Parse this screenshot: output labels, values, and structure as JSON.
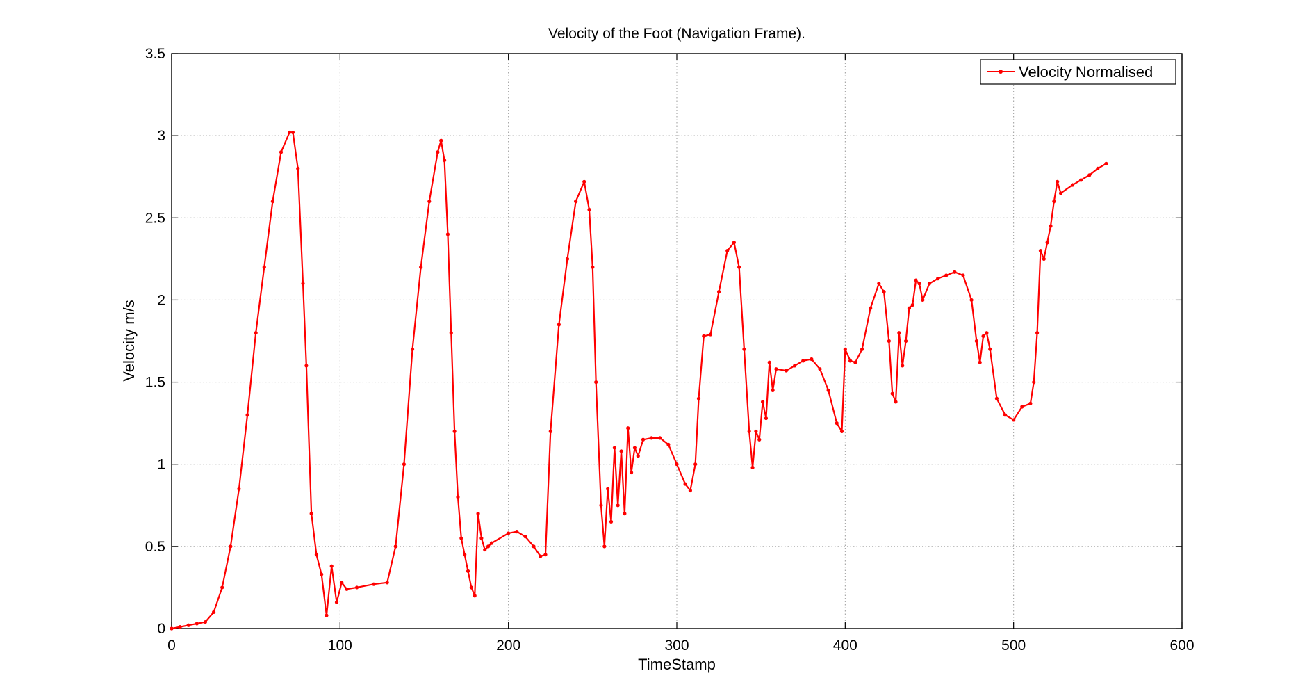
{
  "chart_data": {
    "type": "line",
    "title": "Velocity of the Foot (Navigation Frame).",
    "xlabel": "TimeStamp",
    "ylabel": "Velocity m/s",
    "xlim": [
      0,
      600
    ],
    "ylim": [
      0,
      3.5
    ],
    "xticks": [
      0,
      100,
      200,
      300,
      400,
      500,
      600
    ],
    "yticks": [
      0,
      0.5,
      1,
      1.5,
      2,
      2.5,
      3,
      3.5
    ],
    "xtick_labels": [
      "0",
      "100",
      "200",
      "300",
      "400",
      "500",
      "600"
    ],
    "ytick_labels": [
      "0",
      "0.5",
      "1",
      "1.5",
      "2",
      "2.5",
      "3",
      "3.5"
    ],
    "grid": true,
    "legend_position": "top-right",
    "series": [
      {
        "name": "Velocity Normalised",
        "color": "#ff0000",
        "marker": "point",
        "x": [
          0,
          5,
          10,
          15,
          20,
          25,
          30,
          35,
          40,
          45,
          50,
          55,
          60,
          65,
          70,
          72,
          75,
          78,
          80,
          83,
          86,
          89,
          92,
          95,
          98,
          101,
          104,
          110,
          120,
          128,
          133,
          138,
          143,
          148,
          153,
          158,
          160,
          162,
          164,
          166,
          168,
          170,
          172,
          174,
          176,
          178,
          180,
          182,
          184,
          186,
          188,
          190,
          200,
          205,
          210,
          215,
          219,
          222,
          225,
          230,
          235,
          240,
          245,
          248,
          250,
          252,
          255,
          257,
          259,
          261,
          263,
          265,
          267,
          269,
          271,
          273,
          275,
          277,
          280,
          285,
          290,
          295,
          300,
          305,
          308,
          311,
          313,
          316,
          320,
          325,
          330,
          334,
          337,
          340,
          343,
          345,
          347,
          349,
          351,
          353,
          355,
          357,
          359,
          365,
          370,
          375,
          380,
          385,
          390,
          395,
          398,
          400,
          403,
          406,
          410,
          415,
          420,
          423,
          426,
          428,
          430,
          432,
          434,
          436,
          438,
          440,
          442,
          444,
          446,
          450,
          455,
          460,
          465,
          470,
          475,
          478,
          480,
          482,
          484,
          486,
          490,
          495,
          500,
          505,
          510,
          512,
          514,
          516,
          518,
          520,
          522,
          524,
          526,
          528,
          535,
          540,
          545,
          550,
          555
        ],
        "values": [
          0,
          0.01,
          0.02,
          0.03,
          0.04,
          0.1,
          0.25,
          0.5,
          0.85,
          1.3,
          1.8,
          2.2,
          2.6,
          2.9,
          3.02,
          3.02,
          2.8,
          2.1,
          1.6,
          0.7,
          0.45,
          0.33,
          0.08,
          0.38,
          0.16,
          0.28,
          0.24,
          0.25,
          0.27,
          0.28,
          0.5,
          1.0,
          1.7,
          2.2,
          2.6,
          2.9,
          2.97,
          2.85,
          2.4,
          1.8,
          1.2,
          0.8,
          0.55,
          0.45,
          0.35,
          0.25,
          0.2,
          0.7,
          0.55,
          0.48,
          0.5,
          0.52,
          0.58,
          0.59,
          0.56,
          0.5,
          0.44,
          0.45,
          1.2,
          1.85,
          2.25,
          2.6,
          2.72,
          2.55,
          2.2,
          1.5,
          0.75,
          0.5,
          0.85,
          0.65,
          1.1,
          0.75,
          1.08,
          0.7,
          1.22,
          0.95,
          1.1,
          1.05,
          1.15,
          1.16,
          1.16,
          1.12,
          1.0,
          0.88,
          0.84,
          1.0,
          1.4,
          1.78,
          1.79,
          2.05,
          2.3,
          2.35,
          2.2,
          1.7,
          1.2,
          0.98,
          1.2,
          1.15,
          1.38,
          1.28,
          1.62,
          1.45,
          1.58,
          1.57,
          1.6,
          1.63,
          1.64,
          1.58,
          1.45,
          1.25,
          1.2,
          1.7,
          1.63,
          1.62,
          1.7,
          1.95,
          2.1,
          2.05,
          1.75,
          1.43,
          1.38,
          1.8,
          1.6,
          1.75,
          1.95,
          1.97,
          2.12,
          2.1,
          2.0,
          2.1,
          2.13,
          2.15,
          2.17,
          2.15,
          2.0,
          1.75,
          1.62,
          1.78,
          1.8,
          1.7,
          1.4,
          1.3,
          1.27,
          1.35,
          1.37,
          1.5,
          1.8,
          2.3,
          2.25,
          2.35,
          2.45,
          2.6,
          2.72,
          2.65,
          2.7,
          2.73,
          2.76,
          2.8,
          2.83
        ]
      }
    ]
  }
}
